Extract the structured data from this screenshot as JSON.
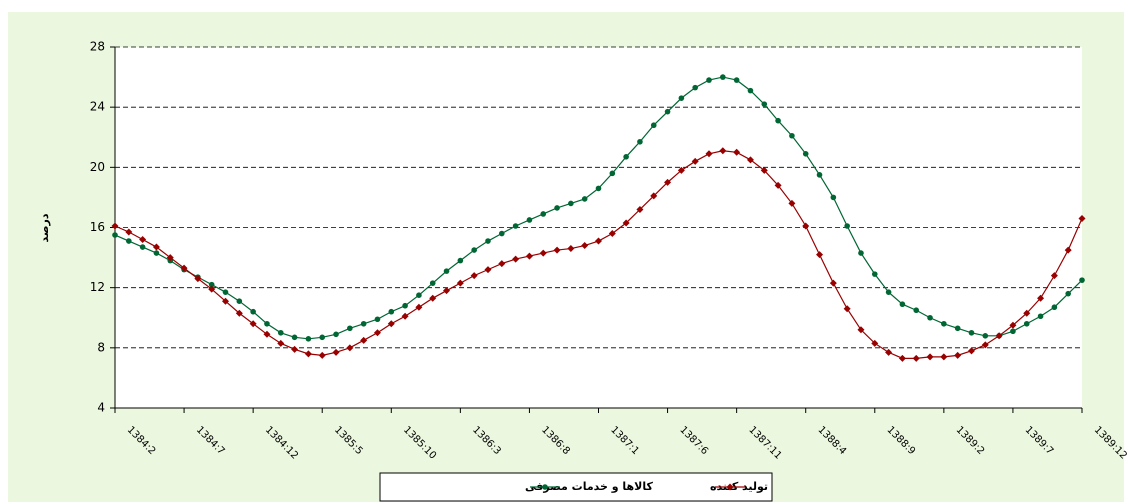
{
  "chart_data": {
    "type": "line",
    "ylabel": "درصد",
    "categories": [
      "1384:2",
      null,
      null,
      null,
      null,
      "1384:7",
      null,
      null,
      null,
      null,
      "1384:12",
      null,
      null,
      null,
      null,
      "1385:5",
      null,
      null,
      null,
      null,
      "1385:10",
      null,
      null,
      null,
      null,
      "1386:3",
      null,
      null,
      null,
      null,
      "1386:8",
      null,
      null,
      null,
      null,
      "1387:1",
      null,
      null,
      null,
      null,
      "1387:6",
      null,
      null,
      null,
      null,
      "1387:11",
      null,
      null,
      null,
      null,
      "1388:4",
      null,
      null,
      null,
      null,
      "1388:9",
      null,
      null,
      null,
      null,
      "1389:2",
      null,
      null,
      null,
      null,
      "1389:7",
      null,
      null,
      null,
      null,
      "1389:12"
    ],
    "series": [
      {
        "name": "کالاها و خدمات مصرفی",
        "color": "#006633",
        "marker": "circle",
        "values": [
          15.5,
          15.1,
          14.7,
          14.3,
          13.8,
          13.2,
          12.7,
          12.2,
          11.7,
          11.1,
          10.4,
          9.6,
          9.0,
          8.7,
          8.6,
          8.7,
          8.9,
          9.3,
          9.6,
          9.9,
          10.4,
          10.8,
          11.5,
          12.3,
          13.1,
          13.8,
          14.5,
          15.1,
          15.6,
          16.1,
          16.5,
          16.9,
          17.3,
          17.6,
          17.9,
          18.6,
          19.6,
          20.7,
          21.7,
          22.8,
          23.7,
          24.6,
          25.3,
          25.8,
          26.0,
          25.8,
          25.1,
          24.2,
          23.1,
          22.1,
          20.9,
          19.5,
          18.0,
          16.1,
          14.3,
          12.9,
          11.7,
          10.9,
          10.5,
          10.0,
          9.6,
          9.3,
          9.0,
          8.8,
          8.8,
          9.1,
          9.6,
          10.1,
          10.7,
          11.6,
          12.5
        ]
      },
      {
        "name": "تولید کننده",
        "color": "#990000",
        "marker": "diamond",
        "values": [
          16.1,
          15.7,
          15.2,
          14.7,
          14.0,
          13.3,
          12.6,
          11.9,
          11.1,
          10.3,
          9.6,
          8.9,
          8.3,
          7.9,
          7.6,
          7.5,
          7.7,
          8.0,
          8.5,
          9.0,
          9.6,
          10.1,
          10.7,
          11.3,
          11.8,
          12.3,
          12.8,
          13.2,
          13.6,
          13.9,
          14.1,
          14.3,
          14.5,
          14.6,
          14.8,
          15.1,
          15.6,
          16.3,
          17.2,
          18.1,
          19.0,
          19.8,
          20.4,
          20.9,
          21.1,
          21.0,
          20.5,
          19.8,
          18.8,
          17.6,
          16.1,
          14.2,
          12.3,
          10.6,
          9.2,
          8.3,
          7.7,
          7.3,
          7.3,
          7.4,
          7.4,
          7.5,
          7.8,
          8.2,
          8.8,
          9.5,
          10.3,
          11.3,
          12.8,
          14.5,
          16.6
        ]
      }
    ],
    "ylim": [
      4,
      28
    ],
    "yticks": [
      4,
      8,
      12,
      16,
      20,
      24,
      28
    ],
    "grid": true,
    "grid_style": "dashed",
    "legend": "bottom"
  }
}
